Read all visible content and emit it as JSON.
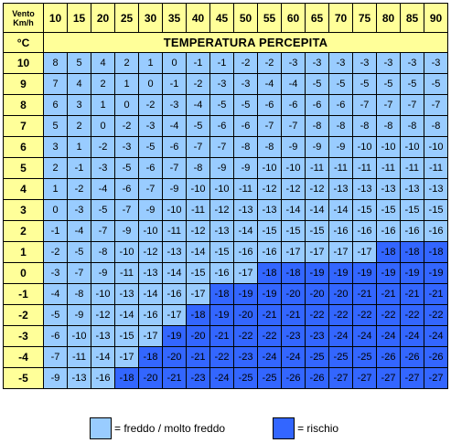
{
  "corner": {
    "line1": "Vento",
    "line2": "Km/h",
    "unit": "°C"
  },
  "speeds": [
    "10",
    "15",
    "20",
    "25",
    "30",
    "35",
    "40",
    "45",
    "50",
    "55",
    "60",
    "65",
    "70",
    "75",
    "80",
    "85",
    "90"
  ],
  "header_label": "TEMPERATURA PERCEPITA",
  "rows": [
    {
      "t": "10",
      "vals": [
        "8",
        "5",
        "4",
        "2",
        "1",
        "0",
        "-1",
        "-1",
        "-2",
        "-2",
        "-3",
        "-3",
        "-3",
        "-3",
        "-3",
        "-3",
        "-3"
      ],
      "risk_from": 17
    },
    {
      "t": "9",
      "vals": [
        "7",
        "4",
        "2",
        "1",
        "0",
        "-1",
        "-2",
        "-3",
        "-3",
        "-4",
        "-4",
        "-5",
        "-5",
        "-5",
        "-5",
        "-5",
        "-5"
      ],
      "risk_from": 17
    },
    {
      "t": "8",
      "vals": [
        "6",
        "3",
        "1",
        "0",
        "-2",
        "-3",
        "-4",
        "-5",
        "-5",
        "-6",
        "-6",
        "-6",
        "-6",
        "-7",
        "-7",
        "-7",
        "-7"
      ],
      "risk_from": 17
    },
    {
      "t": "7",
      "vals": [
        "5",
        "2",
        "0",
        "-2",
        "-3",
        "-4",
        "-5",
        "-6",
        "-6",
        "-7",
        "-7",
        "-8",
        "-8",
        "-8",
        "-8",
        "-8",
        "-8"
      ],
      "risk_from": 17
    },
    {
      "t": "6",
      "vals": [
        "3",
        "1",
        "-2",
        "-3",
        "-5",
        "-6",
        "-7",
        "-7",
        "-8",
        "-8",
        "-9",
        "-9",
        "-9",
        "-10",
        "-10",
        "-10",
        "-10"
      ],
      "risk_from": 17
    },
    {
      "t": "5",
      "vals": [
        "2",
        "-1",
        "-3",
        "-5",
        "-6",
        "-7",
        "-8",
        "-9",
        "-9",
        "-10",
        "-10",
        "-11",
        "-11",
        "-11",
        "-11",
        "-11",
        "-11"
      ],
      "risk_from": 17
    },
    {
      "t": "4",
      "vals": [
        "1",
        "-2",
        "-4",
        "-6",
        "-7",
        "-9",
        "-10",
        "-10",
        "-11",
        "-12",
        "-12",
        "-12",
        "-13",
        "-13",
        "-13",
        "-13",
        "-13"
      ],
      "risk_from": 17
    },
    {
      "t": "3",
      "vals": [
        "0",
        "-3",
        "-5",
        "-7",
        "-9",
        "-10",
        "-11",
        "-12",
        "-13",
        "-13",
        "-14",
        "-14",
        "-14",
        "-15",
        "-15",
        "-15",
        "-15"
      ],
      "risk_from": 17
    },
    {
      "t": "2",
      "vals": [
        "-1",
        "-4",
        "-7",
        "-9",
        "-10",
        "-11",
        "-12",
        "-13",
        "-14",
        "-15",
        "-15",
        "-15",
        "-16",
        "-16",
        "-16",
        "-16",
        "-16"
      ],
      "risk_from": 17
    },
    {
      "t": "1",
      "vals": [
        "-2",
        "-5",
        "-8",
        "-10",
        "-12",
        "-13",
        "-14",
        "-15",
        "-16",
        "-16",
        "-17",
        "-17",
        "-17",
        "-17",
        "-18",
        "-18",
        "-18"
      ],
      "risk_from": 14
    },
    {
      "t": "0",
      "vals": [
        "-3",
        "-7",
        "-9",
        "-11",
        "-13",
        "-14",
        "-15",
        "-16",
        "-17",
        "-18",
        "-18",
        "-19",
        "-19",
        "-19",
        "-19",
        "-19",
        "-19"
      ],
      "risk_from": 9
    },
    {
      "t": "-1",
      "vals": [
        "-4",
        "-8",
        "-10",
        "-13",
        "-14",
        "-16",
        "-17",
        "-18",
        "-19",
        "-19",
        "-20",
        "-20",
        "-20",
        "-21",
        "-21",
        "-21",
        "-21"
      ],
      "risk_from": 7
    },
    {
      "t": "-2",
      "vals": [
        "-5",
        "-9",
        "-12",
        "-14",
        "-16",
        "-17",
        "-18",
        "-19",
        "-20",
        "-21",
        "-21",
        "-22",
        "-22",
        "-22",
        "-22",
        "-22",
        "-22"
      ],
      "risk_from": 6
    },
    {
      "t": "-3",
      "vals": [
        "-6",
        "-10",
        "-13",
        "-15",
        "-17",
        "-19",
        "-20",
        "-21",
        "-22",
        "-22",
        "-23",
        "-23",
        "-24",
        "-24",
        "-24",
        "-24",
        "-24"
      ],
      "risk_from": 5
    },
    {
      "t": "-4",
      "vals": [
        "-7",
        "-11",
        "-14",
        "-17",
        "-18",
        "-20",
        "-21",
        "-22",
        "-23",
        "-24",
        "-24",
        "-25",
        "-25",
        "-25",
        "-26",
        "-26",
        "-26"
      ],
      "risk_from": 4
    },
    {
      "t": "-5",
      "vals": [
        "-9",
        "-13",
        "-16",
        "-18",
        "-20",
        "-21",
        "-23",
        "-24",
        "-25",
        "-25",
        "-26",
        "-26",
        "-27",
        "-27",
        "-27",
        "-27",
        "-27"
      ],
      "risk_from": 3
    }
  ],
  "legend": {
    "cold_label": "= freddo / molto freddo",
    "risk_label": "= rischio"
  },
  "colors": {
    "header": "#ffff99",
    "cold": "#99ccff",
    "risk": "#3366ff"
  }
}
